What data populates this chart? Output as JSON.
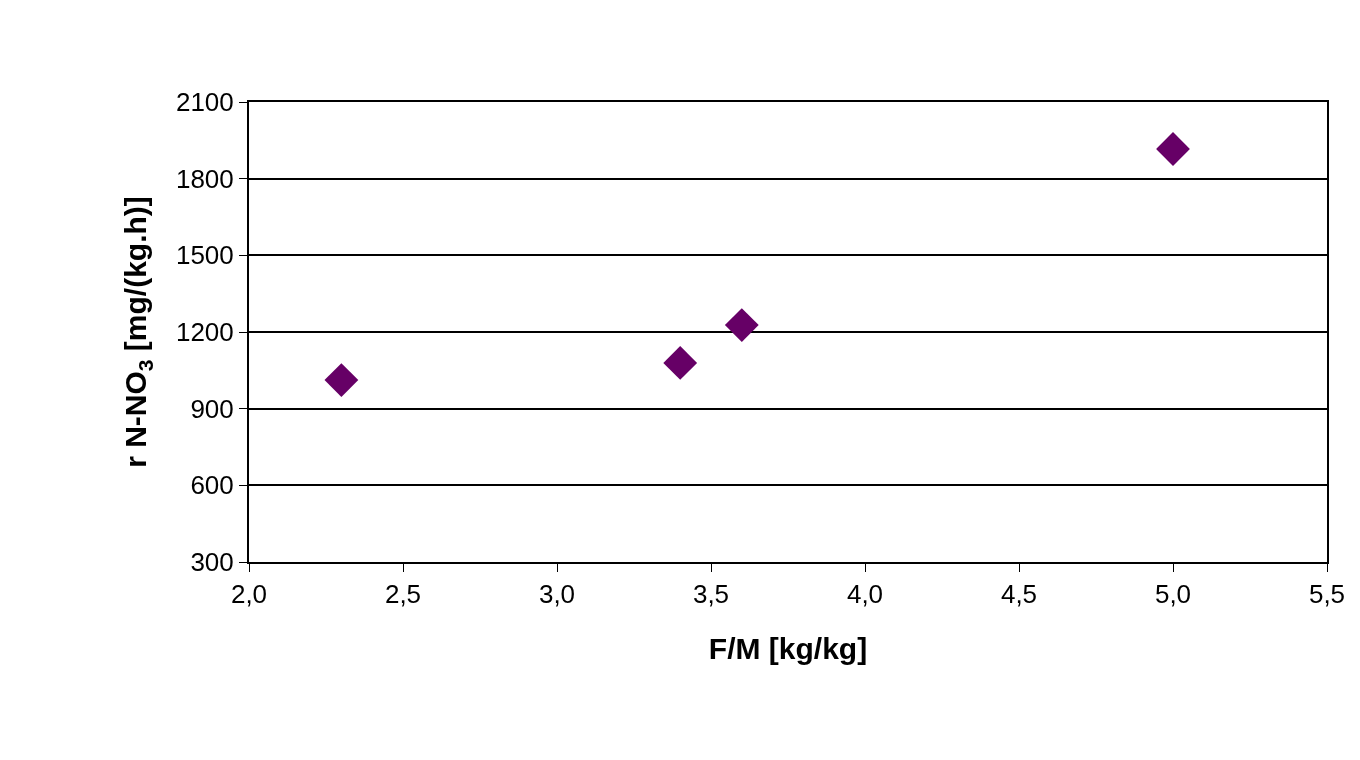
{
  "chart_data": {
    "type": "scatter",
    "xlabel": "F/M [kg/kg]",
    "ylabel": "r N-NO$_{3}$ [mg/(kg.h)]",
    "x": [
      2.3,
      3.4,
      3.6,
      5.0
    ],
    "series": [
      {
        "color": "#660066",
        "values": [
          1012,
          1079,
          1227,
          1916
        ]
      }
    ],
    "xlim": [
      2.0,
      5.5
    ],
    "xticks": [
      {
        "value": 2.0,
        "label": "2,0"
      },
      {
        "value": 2.5,
        "label": "2,5"
      },
      {
        "value": 3.0,
        "label": "3,0"
      },
      {
        "value": 3.5,
        "label": "3,5"
      },
      {
        "value": 4.0,
        "label": "4,0"
      },
      {
        "value": 4.5,
        "label": "4,5"
      },
      {
        "value": 5.0,
        "label": "5,0"
      },
      {
        "value": 5.5,
        "label": "5,5"
      }
    ],
    "ylim": [
      300,
      2100
    ],
    "yticks": [
      300,
      600,
      900,
      1200,
      1500,
      1800,
      2100
    ],
    "grid": "y",
    "marker": "diamond",
    "legend": false
  }
}
